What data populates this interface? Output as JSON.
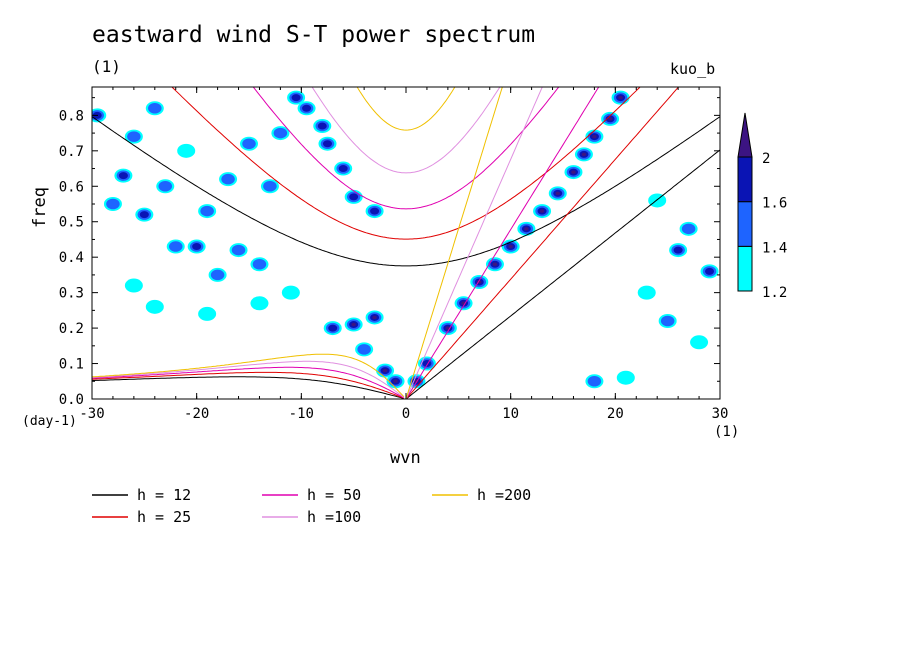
{
  "chart_data": {
    "type": "heatmap",
    "title": "eastward wind S-T power spectrum",
    "units_note": "(1)",
    "tag": "kuo_b",
    "xlabel": "wvn",
    "xunit": "(1)",
    "ylabel": "freq",
    "yunit": "(day-1)",
    "xlim": [
      -30,
      30
    ],
    "ylim": [
      0,
      0.88
    ],
    "xticks": [
      -30,
      -20,
      -10,
      0,
      10,
      20,
      30
    ],
    "xtick_labels": [
      "-30",
      "-20",
      "-10",
      "0",
      "10",
      "20",
      "30"
    ],
    "yticks": [
      0,
      0.1,
      0.2,
      0.3,
      0.4,
      0.5,
      0.6,
      0.7,
      0.8
    ],
    "ytick_labels": [
      "0.0",
      "0.1",
      "0.2",
      "0.3",
      "0.4",
      "0.5",
      "0.6",
      "0.7",
      "0.8"
    ],
    "colorbar": {
      "levels": [
        1.2,
        1.4,
        1.6,
        2
      ],
      "labels": [
        "1.2",
        "1.4",
        "1.6",
        "2"
      ],
      "colors": [
        "#00ffff",
        "#1e64ff",
        "#0a14b4",
        "#3c1482"
      ]
    },
    "dispersion_curves": [
      {
        "label": "h = 12",
        "h": 12,
        "color": "#000000"
      },
      {
        "label": "h = 25",
        "h": 25,
        "color": "#e00000"
      },
      {
        "label": "h = 50",
        "h": 50,
        "color": "#e000b0"
      },
      {
        "label": "h =100",
        "h": 100,
        "color": "#e090e0"
      },
      {
        "label": "h =200",
        "h": 200,
        "color": "#f0c000"
      }
    ],
    "power_blobs": [
      {
        "x": -29.5,
        "y": 0.8,
        "v": 1.6
      },
      {
        "x": -28,
        "y": 0.55,
        "v": 1.4
      },
      {
        "x": -27,
        "y": 0.63,
        "v": 1.6
      },
      {
        "x": -26,
        "y": 0.74,
        "v": 1.4
      },
      {
        "x": -25,
        "y": 0.52,
        "v": 1.6
      },
      {
        "x": -24,
        "y": 0.82,
        "v": 1.4
      },
      {
        "x": -23,
        "y": 0.6,
        "v": 1.4
      },
      {
        "x": -22,
        "y": 0.43,
        "v": 1.4
      },
      {
        "x": -21,
        "y": 0.7,
        "v": 1.2
      },
      {
        "x": -20,
        "y": 0.43,
        "v": 1.6
      },
      {
        "x": -19,
        "y": 0.53,
        "v": 1.4
      },
      {
        "x": -18,
        "y": 0.35,
        "v": 1.4
      },
      {
        "x": -17,
        "y": 0.62,
        "v": 1.4
      },
      {
        "x": -16,
        "y": 0.42,
        "v": 1.4
      },
      {
        "x": -15,
        "y": 0.72,
        "v": 1.4
      },
      {
        "x": -14,
        "y": 0.38,
        "v": 1.4
      },
      {
        "x": -13,
        "y": 0.6,
        "v": 1.4
      },
      {
        "x": -12,
        "y": 0.75,
        "v": 1.4
      },
      {
        "x": -11,
        "y": 0.3,
        "v": 1.2
      },
      {
        "x": -10.5,
        "y": 0.85,
        "v": 1.6
      },
      {
        "x": -9.5,
        "y": 0.82,
        "v": 1.6
      },
      {
        "x": -8,
        "y": 0.77,
        "v": 1.6
      },
      {
        "x": -7.5,
        "y": 0.72,
        "v": 1.6
      },
      {
        "x": -6,
        "y": 0.65,
        "v": 1.6
      },
      {
        "x": -5,
        "y": 0.57,
        "v": 1.6
      },
      {
        "x": -3,
        "y": 0.53,
        "v": 1.6
      },
      {
        "x": -26,
        "y": 0.32,
        "v": 1.2
      },
      {
        "x": -24,
        "y": 0.26,
        "v": 1.2
      },
      {
        "x": -19,
        "y": 0.24,
        "v": 1.2
      },
      {
        "x": -14,
        "y": 0.27,
        "v": 1.2
      },
      {
        "x": -7,
        "y": 0.2,
        "v": 1.6
      },
      {
        "x": -5,
        "y": 0.21,
        "v": 2
      },
      {
        "x": -3,
        "y": 0.23,
        "v": 2
      },
      {
        "x": -2,
        "y": 0.08,
        "v": 2
      },
      {
        "x": -1,
        "y": 0.05,
        "v": 2
      },
      {
        "x": -4,
        "y": 0.14,
        "v": 1.4
      },
      {
        "x": 1,
        "y": 0.05,
        "v": 2
      },
      {
        "x": 2,
        "y": 0.1,
        "v": 1.6
      },
      {
        "x": 4,
        "y": 0.2,
        "v": 2
      },
      {
        "x": 5.5,
        "y": 0.27,
        "v": 2
      },
      {
        "x": 7,
        "y": 0.33,
        "v": 2
      },
      {
        "x": 8.5,
        "y": 0.38,
        "v": 2
      },
      {
        "x": 10,
        "y": 0.43,
        "v": 2
      },
      {
        "x": 11.5,
        "y": 0.48,
        "v": 2
      },
      {
        "x": 13,
        "y": 0.53,
        "v": 2
      },
      {
        "x": 14.5,
        "y": 0.58,
        "v": 2
      },
      {
        "x": 16,
        "y": 0.64,
        "v": 2
      },
      {
        "x": 17,
        "y": 0.69,
        "v": 2
      },
      {
        "x": 18,
        "y": 0.74,
        "v": 2
      },
      {
        "x": 19.5,
        "y": 0.79,
        "v": 2
      },
      {
        "x": 20.5,
        "y": 0.85,
        "v": 2
      },
      {
        "x": 27,
        "y": 0.48,
        "v": 1.4
      },
      {
        "x": 26,
        "y": 0.42,
        "v": 1.6
      },
      {
        "x": 25,
        "y": 0.22,
        "v": 1.4
      },
      {
        "x": 23,
        "y": 0.3,
        "v": 1.2
      },
      {
        "x": 28,
        "y": 0.16,
        "v": 1.2
      },
      {
        "x": 18,
        "y": 0.05,
        "v": 1.4
      },
      {
        "x": 21,
        "y": 0.06,
        "v": 1.2
      },
      {
        "x": 29,
        "y": 0.36,
        "v": 1.6
      },
      {
        "x": 24,
        "y": 0.56,
        "v": 1.2
      }
    ]
  }
}
